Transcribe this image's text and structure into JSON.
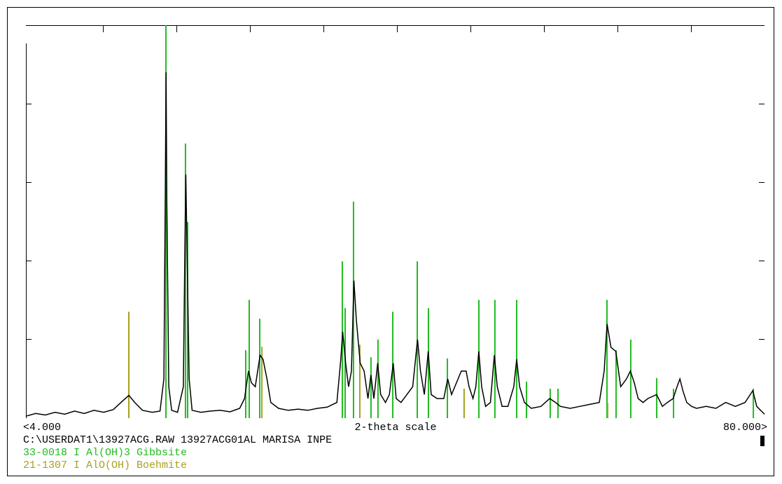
{
  "chart_data": {
    "type": "line",
    "xlabel": "2-theta scale",
    "xlim": [
      4,
      80
    ],
    "xticks": [
      {
        "value": 4,
        "label": "<4.000"
      },
      {
        "value": 80,
        "label": "80.000>"
      }
    ],
    "ylim": [
      0,
      100
    ],
    "series": [
      {
        "name": "C:\\USERDAT1\\13927ACG.RAW 13927ACG01AL MARISA INPE",
        "color": "#000000",
        "style": "line",
        "x": [
          4.0,
          5,
          6,
          7,
          8,
          9,
          10,
          11,
          12,
          13,
          14,
          14.6,
          15.2,
          16,
          17,
          17.8,
          18.2,
          18.35,
          18.42,
          18.5,
          18.7,
          19,
          19.6,
          20.2,
          20.35,
          20.45,
          20.6,
          20.8,
          21.1,
          22,
          23,
          24,
          25,
          26,
          26.5,
          26.9,
          27.2,
          27.6,
          28.1,
          28.4,
          28.8,
          29.2,
          30,
          31,
          32,
          33,
          34,
          35,
          36,
          36.4,
          36.6,
          36.9,
          37.2,
          37.5,
          37.75,
          38,
          38.4,
          38.8,
          39.2,
          39.5,
          39.8,
          40.2,
          40.5,
          41,
          41.4,
          41.8,
          42.1,
          42.6,
          43.2,
          43.8,
          44.3,
          44.6,
          45,
          45.4,
          45.7,
          46.3,
          47,
          47.4,
          47.8,
          48.3,
          48.8,
          49.3,
          49.6,
          50,
          50.3,
          50.6,
          50.9,
          51.3,
          51.8,
          52.2,
          52.5,
          53,
          53.6,
          54.2,
          54.5,
          54.8,
          55.3,
          56,
          57,
          57.9,
          58.5,
          59,
          60,
          61,
          62,
          63,
          63.5,
          63.8,
          64.2,
          64.7,
          65.2,
          65.8,
          66.2,
          66.6,
          67,
          67.5,
          68,
          68.9,
          69.5,
          70,
          70.6,
          71,
          71.3,
          71.6,
          72,
          72.5,
          73,
          74,
          75,
          76,
          77,
          78,
          78.8,
          79.2,
          80
        ],
        "values": [
          0.5,
          1.2,
          0.8,
          1.5,
          1.0,
          1.8,
          1.2,
          2.0,
          1.5,
          2.2,
          4.5,
          5.8,
          4.0,
          2.0,
          1.5,
          1.8,
          10,
          60,
          88,
          55,
          8,
          2,
          1.5,
          8,
          42,
          62,
          40,
          10,
          2,
          1.5,
          1.8,
          2.0,
          1.6,
          2.5,
          5,
          12,
          9,
          8,
          16,
          15,
          10,
          4,
          2.5,
          2.0,
          2.3,
          2.0,
          2.5,
          2.8,
          4,
          15,
          22,
          14,
          8,
          12,
          35,
          25,
          14,
          12,
          5,
          11,
          5,
          14,
          6,
          4,
          6,
          14,
          5,
          4,
          6,
          8,
          20,
          12,
          6,
          17,
          6,
          5,
          5,
          10,
          6,
          9,
          12,
          12,
          8,
          5,
          8,
          17,
          8,
          3,
          4,
          16,
          8,
          3,
          3,
          8,
          15,
          8,
          4,
          2.5,
          3,
          5,
          4,
          3,
          2.5,
          3,
          3.5,
          4,
          12,
          24,
          18,
          17,
          8,
          10,
          12,
          9,
          5,
          4,
          5,
          6,
          3,
          4,
          5,
          8,
          10,
          7,
          4,
          3,
          2.5,
          3,
          2.5,
          4,
          3,
          4,
          7,
          3,
          1
        ]
      },
      {
        "name": "33-0018 I Al(OH)3 Gibbsite",
        "color": "#22bb22",
        "style": "stick",
        "x": [
          18.41,
          20.42,
          20.64,
          26.62,
          26.98,
          28.06,
          36.56,
          36.85,
          37.71,
          39.51,
          40.23,
          41.75,
          44.27,
          45.42,
          47.37,
          50.61,
          52.26,
          54.5,
          55.51,
          57.95,
          58.75,
          63.79,
          64.73,
          66.24,
          68.91,
          70.64,
          78.85
        ],
        "values": [
          100,
          69.9,
          49.9,
          17.3,
          30.1,
          25.3,
          39.9,
          28,
          55.1,
          15.5,
          20,
          27.1,
          39.9,
          28,
          15.2,
          30.1,
          30.1,
          30.1,
          9.3,
          7.5,
          7.5,
          30.1,
          17.3,
          20,
          10.2,
          7.5,
          7.5
        ]
      },
      {
        "name": "21-1307 I AlO(OH) Boehmite",
        "color": "#a8a020",
        "style": "stick",
        "x": [
          14.59,
          28.28,
          38.36,
          49.09,
          63.86
        ],
        "values": [
          27.1,
          18.2,
          18.7,
          7.5,
          3.9
        ]
      }
    ]
  }
}
